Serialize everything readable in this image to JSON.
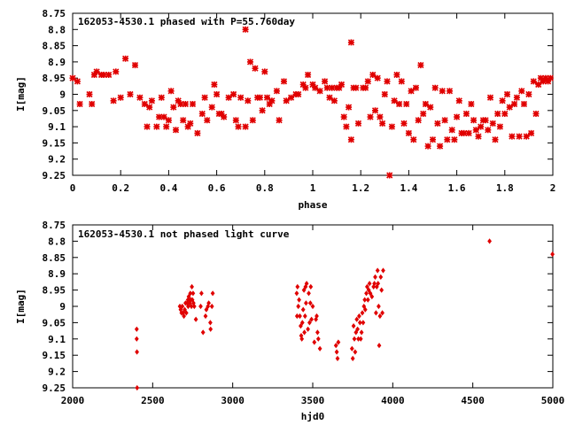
{
  "colors": {
    "marker": "#e00000",
    "axis": "#000000",
    "background": "#ffffff"
  },
  "chart_data": [
    {
      "type": "scatter",
      "title": "162053-4530.1 phased with P=55.760day",
      "xlabel": "phase",
      "ylabel": "I[mag]",
      "xlim": [
        0,
        2
      ],
      "ylim": [
        8.75,
        9.25
      ],
      "y_inverted": true,
      "grid": false,
      "marker_style": "filled-square-cross",
      "xticks": [
        "0",
        "0.2",
        "0.4",
        "0.6",
        "0.8",
        "1",
        "1.2",
        "1.4",
        "1.6",
        "1.8",
        "2"
      ],
      "yticks": [
        "8.75",
        "8.8",
        "8.85",
        "8.9",
        "8.95",
        "9",
        "9.05",
        "9.1",
        "9.15",
        "9.2",
        "9.25"
      ],
      "points": [
        [
          0.0,
          8.95
        ],
        [
          0.02,
          8.96
        ],
        [
          0.03,
          9.03
        ],
        [
          0.07,
          9.0
        ],
        [
          0.08,
          9.03
        ],
        [
          0.09,
          8.94
        ],
        [
          0.1,
          8.93
        ],
        [
          0.12,
          8.94
        ],
        [
          0.13,
          8.94
        ],
        [
          0.15,
          8.94
        ],
        [
          0.17,
          9.02
        ],
        [
          0.18,
          8.93
        ],
        [
          0.2,
          9.01
        ],
        [
          0.22,
          8.89
        ],
        [
          0.24,
          9.0
        ],
        [
          0.26,
          8.91
        ],
        [
          0.28,
          9.01
        ],
        [
          0.3,
          9.03
        ],
        [
          0.31,
          9.1
        ],
        [
          0.32,
          9.04
        ],
        [
          0.33,
          9.02
        ],
        [
          0.35,
          9.1
        ],
        [
          0.36,
          9.07
        ],
        [
          0.37,
          9.01
        ],
        [
          0.38,
          9.07
        ],
        [
          0.39,
          9.1
        ],
        [
          0.4,
          9.08
        ],
        [
          0.41,
          8.99
        ],
        [
          0.42,
          9.04
        ],
        [
          0.43,
          9.11
        ],
        [
          0.44,
          9.02
        ],
        [
          0.45,
          9.03
        ],
        [
          0.46,
          9.08
        ],
        [
          0.47,
          9.03
        ],
        [
          0.48,
          9.1
        ],
        [
          0.49,
          9.09
        ],
        [
          0.5,
          9.03
        ],
        [
          0.52,
          9.12
        ],
        [
          0.54,
          9.06
        ],
        [
          0.55,
          9.01
        ],
        [
          0.56,
          9.08
        ],
        [
          0.58,
          9.04
        ],
        [
          0.59,
          8.97
        ],
        [
          0.6,
          9.0
        ],
        [
          0.61,
          9.06
        ],
        [
          0.62,
          9.06
        ],
        [
          0.63,
          9.07
        ],
        [
          0.65,
          9.01
        ],
        [
          0.67,
          9.0
        ],
        [
          0.68,
          9.08
        ],
        [
          0.69,
          9.1
        ],
        [
          0.7,
          9.01
        ],
        [
          0.72,
          8.8
        ],
        [
          0.72,
          9.1
        ],
        [
          0.73,
          9.02
        ],
        [
          0.74,
          8.9
        ],
        [
          0.75,
          9.08
        ],
        [
          0.76,
          8.92
        ],
        [
          0.77,
          9.01
        ],
        [
          0.78,
          9.01
        ],
        [
          0.79,
          9.05
        ],
        [
          0.8,
          8.93
        ],
        [
          0.81,
          9.01
        ],
        [
          0.82,
          9.03
        ],
        [
          0.83,
          9.02
        ],
        [
          0.85,
          8.99
        ],
        [
          0.86,
          9.08
        ],
        [
          0.88,
          8.96
        ],
        [
          0.89,
          9.02
        ],
        [
          0.91,
          9.01
        ],
        [
          0.93,
          9.0
        ],
        [
          0.94,
          9.0
        ],
        [
          0.96,
          8.97
        ],
        [
          0.97,
          8.98
        ],
        [
          0.98,
          8.94
        ],
        [
          1.0,
          8.97
        ],
        [
          1.01,
          8.98
        ],
        [
          1.03,
          8.99
        ],
        [
          1.05,
          8.96
        ],
        [
          1.06,
          8.98
        ],
        [
          1.07,
          9.01
        ],
        [
          1.08,
          8.98
        ],
        [
          1.09,
          9.02
        ],
        [
          1.1,
          8.98
        ],
        [
          1.11,
          8.98
        ],
        [
          1.12,
          8.97
        ],
        [
          1.13,
          9.07
        ],
        [
          1.14,
          9.1
        ],
        [
          1.15,
          9.04
        ],
        [
          1.16,
          9.14
        ],
        [
          1.16,
          8.84
        ],
        [
          1.17,
          8.98
        ],
        [
          1.18,
          8.98
        ],
        [
          1.19,
          9.09
        ],
        [
          1.21,
          8.98
        ],
        [
          1.22,
          8.98
        ],
        [
          1.23,
          8.96
        ],
        [
          1.24,
          9.07
        ],
        [
          1.25,
          8.94
        ],
        [
          1.26,
          9.05
        ],
        [
          1.27,
          8.95
        ],
        [
          1.28,
          9.07
        ],
        [
          1.29,
          9.09
        ],
        [
          1.3,
          9.0
        ],
        [
          1.31,
          8.96
        ],
        [
          1.32,
          9.25
        ],
        [
          1.33,
          9.1
        ],
        [
          1.34,
          9.02
        ],
        [
          1.35,
          8.94
        ],
        [
          1.36,
          9.03
        ],
        [
          1.37,
          8.96
        ],
        [
          1.38,
          9.09
        ],
        [
          1.39,
          9.03
        ],
        [
          1.4,
          9.12
        ],
        [
          1.41,
          8.99
        ],
        [
          1.42,
          9.14
        ],
        [
          1.43,
          8.98
        ],
        [
          1.44,
          9.08
        ],
        [
          1.45,
          8.91
        ],
        [
          1.46,
          9.06
        ],
        [
          1.47,
          9.03
        ],
        [
          1.48,
          9.16
        ],
        [
          1.49,
          9.04
        ],
        [
          1.5,
          9.14
        ],
        [
          1.51,
          8.98
        ],
        [
          1.52,
          9.09
        ],
        [
          1.53,
          9.16
        ],
        [
          1.54,
          8.99
        ],
        [
          1.55,
          9.08
        ],
        [
          1.56,
          9.14
        ],
        [
          1.57,
          8.99
        ],
        [
          1.58,
          9.11
        ],
        [
          1.59,
          9.14
        ],
        [
          1.6,
          9.07
        ],
        [
          1.61,
          9.02
        ],
        [
          1.62,
          9.12
        ],
        [
          1.63,
          9.12
        ],
        [
          1.64,
          9.06
        ],
        [
          1.65,
          9.12
        ],
        [
          1.66,
          9.03
        ],
        [
          1.67,
          9.08
        ],
        [
          1.68,
          9.11
        ],
        [
          1.69,
          9.13
        ],
        [
          1.7,
          9.1
        ],
        [
          1.71,
          9.08
        ],
        [
          1.72,
          9.08
        ],
        [
          1.73,
          9.11
        ],
        [
          1.74,
          9.01
        ],
        [
          1.75,
          9.09
        ],
        [
          1.76,
          9.14
        ],
        [
          1.77,
          9.06
        ],
        [
          1.78,
          9.1
        ],
        [
          1.79,
          9.02
        ],
        [
          1.8,
          9.06
        ],
        [
          1.81,
          9.0
        ],
        [
          1.82,
          9.04
        ],
        [
          1.83,
          9.13
        ],
        [
          1.84,
          9.03
        ],
        [
          1.85,
          9.01
        ],
        [
          1.86,
          9.13
        ],
        [
          1.87,
          8.99
        ],
        [
          1.88,
          9.03
        ],
        [
          1.89,
          9.13
        ],
        [
          1.9,
          9.0
        ],
        [
          1.91,
          9.12
        ],
        [
          1.92,
          8.96
        ],
        [
          1.93,
          9.06
        ],
        [
          1.94,
          8.97
        ],
        [
          1.95,
          8.95
        ],
        [
          1.96,
          8.96
        ],
        [
          1.97,
          8.95
        ],
        [
          1.98,
          8.96
        ],
        [
          1.99,
          8.95
        ]
      ]
    },
    {
      "type": "scatter",
      "title": "162053-4530.1 not phased light curve",
      "xlabel": "hjd0",
      "ylabel": "I[mag]",
      "xlim": [
        2000,
        5000
      ],
      "ylim": [
        8.75,
        9.25
      ],
      "y_inverted": true,
      "grid": false,
      "marker_style": "diamond",
      "xticks": [
        "2000",
        "2500",
        "3000",
        "3500",
        "4000",
        "4500",
        "5000"
      ],
      "yticks": [
        "8.75",
        "8.8",
        "8.85",
        "8.9",
        "8.95",
        "9",
        "9.05",
        "9.1",
        "9.15",
        "9.2",
        "9.25"
      ],
      "points": [
        [
          2400,
          9.07
        ],
        [
          2400,
          9.1
        ],
        [
          2402,
          9.14
        ],
        [
          2403,
          9.25
        ],
        [
          2670,
          9.0
        ],
        [
          2675,
          9.01
        ],
        [
          2680,
          9.02
        ],
        [
          2685,
          9.0
        ],
        [
          2690,
          9.02
        ],
        [
          2695,
          9.03
        ],
        [
          2700,
          9.01
        ],
        [
          2705,
          8.99
        ],
        [
          2710,
          9.02
        ],
        [
          2715,
          8.99
        ],
        [
          2720,
          8.98
        ],
        [
          2722,
          9.0
        ],
        [
          2725,
          8.97
        ],
        [
          2728,
          8.98
        ],
        [
          2732,
          8.99
        ],
        [
          2735,
          8.96
        ],
        [
          2738,
          8.98
        ],
        [
          2742,
          9.0
        ],
        [
          2745,
          8.94
        ],
        [
          2748,
          8.98
        ],
        [
          2752,
          8.96
        ],
        [
          2755,
          8.99
        ],
        [
          2760,
          9.0
        ],
        [
          2770,
          9.04
        ],
        [
          2800,
          9.0
        ],
        [
          2805,
          8.96
        ],
        [
          2815,
          9.08
        ],
        [
          2830,
          9.03
        ],
        [
          2835,
          9.01
        ],
        [
          2845,
          9.0
        ],
        [
          2850,
          8.99
        ],
        [
          2860,
          9.05
        ],
        [
          2862,
          9.07
        ],
        [
          2870,
          9.0
        ],
        [
          2875,
          8.96
        ],
        [
          3400,
          8.96
        ],
        [
          3402,
          9.03
        ],
        [
          3405,
          8.94
        ],
        [
          3410,
          9.0
        ],
        [
          3415,
          8.98
        ],
        [
          3420,
          9.03
        ],
        [
          3425,
          9.06
        ],
        [
          3428,
          9.09
        ],
        [
          3432,
          9.1
        ],
        [
          3435,
          9.05
        ],
        [
          3440,
          9.01
        ],
        [
          3445,
          8.95
        ],
        [
          3448,
          9.08
        ],
        [
          3452,
          9.03
        ],
        [
          3455,
          8.94
        ],
        [
          3458,
          8.99
        ],
        [
          3462,
          8.93
        ],
        [
          3470,
          9.07
        ],
        [
          3475,
          8.96
        ],
        [
          3480,
          9.05
        ],
        [
          3485,
          8.99
        ],
        [
          3488,
          8.94
        ],
        [
          3492,
          9.04
        ],
        [
          3500,
          9.0
        ],
        [
          3510,
          9.11
        ],
        [
          3520,
          9.04
        ],
        [
          3525,
          9.03
        ],
        [
          3530,
          9.08
        ],
        [
          3535,
          9.1
        ],
        [
          3545,
          9.13
        ],
        [
          3645,
          9.12
        ],
        [
          3650,
          9.14
        ],
        [
          3655,
          9.16
        ],
        [
          3660,
          9.11
        ],
        [
          3745,
          9.13
        ],
        [
          3750,
          9.16
        ],
        [
          3755,
          9.06
        ],
        [
          3760,
          9.1
        ],
        [
          3765,
          9.14
        ],
        [
          3770,
          9.08
        ],
        [
          3775,
          9.04
        ],
        [
          3780,
          9.07
        ],
        [
          3785,
          9.1
        ],
        [
          3790,
          9.03
        ],
        [
          3795,
          9.05
        ],
        [
          3800,
          9.1
        ],
        [
          3805,
          9.08
        ],
        [
          3810,
          9.02
        ],
        [
          3815,
          9.05
        ],
        [
          3820,
          9.0
        ],
        [
          3825,
          8.98
        ],
        [
          3828,
          9.01
        ],
        [
          3835,
          8.96
        ],
        [
          3840,
          8.94
        ],
        [
          3845,
          8.98
        ],
        [
          3850,
          8.95
        ],
        [
          3855,
          8.93
        ],
        [
          3860,
          8.96
        ],
        [
          3870,
          8.97
        ],
        [
          3880,
          8.94
        ],
        [
          3885,
          8.93
        ],
        [
          3890,
          8.91
        ],
        [
          3895,
          9.02
        ],
        [
          3900,
          8.94
        ],
        [
          3905,
          8.89
        ],
        [
          3908,
          8.93
        ],
        [
          3912,
          9.0
        ],
        [
          3915,
          9.12
        ],
        [
          3920,
          9.03
        ],
        [
          3925,
          8.91
        ],
        [
          3930,
          8.95
        ],
        [
          3935,
          9.02
        ],
        [
          3940,
          8.89
        ],
        [
          4605,
          8.8
        ],
        [
          4998,
          8.84
        ]
      ]
    }
  ]
}
